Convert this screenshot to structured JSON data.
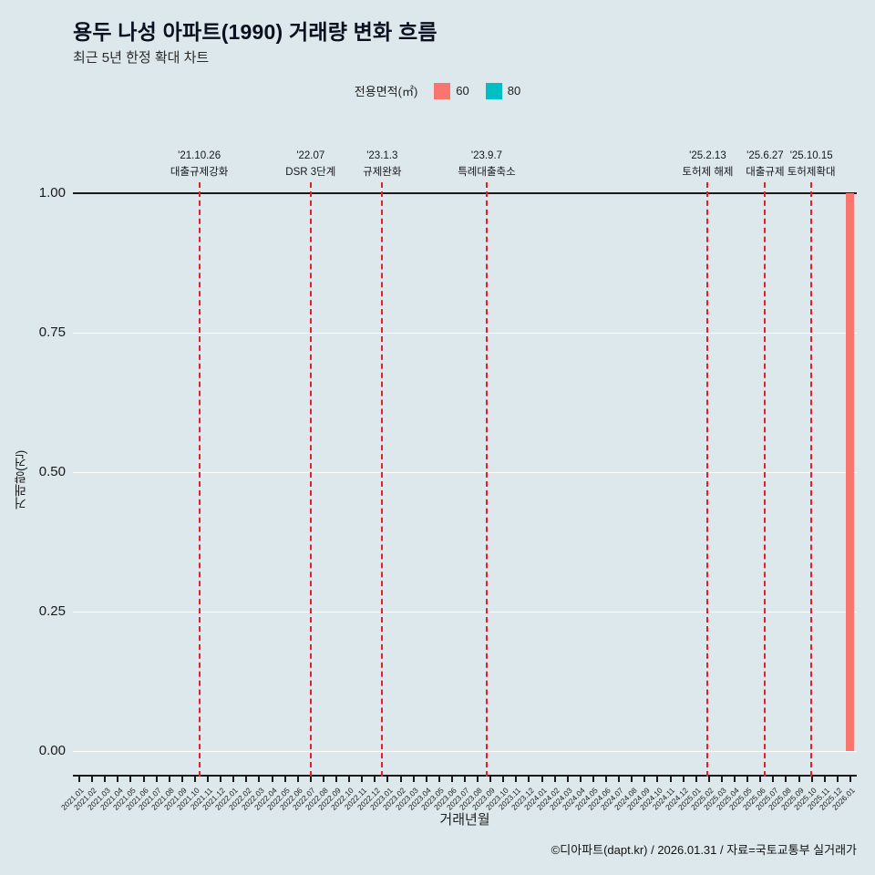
{
  "page": {
    "footer": "©디아파트(dapt.kr) / 2026.01.31 / 자료=국토교통부 실거래가",
    "background": "#dce8eb"
  },
  "chart_data": {
    "type": "bar",
    "title": "용두 나성 아파트(1990) 거래량 변화 흐름",
    "subtitle": "최근 5년 한정 확대 차트",
    "xlabel": "거래년월",
    "ylabel": "거래량(건)",
    "ylim": [
      0,
      1
    ],
    "yticks": [
      0,
      0.25,
      0.5,
      0.75,
      1.0
    ],
    "ytick_labels": [
      "0.00",
      "0.25",
      "0.50",
      "0.75",
      "1.00"
    ],
    "grid": "on",
    "legend": {
      "title": "전용면적(㎡)",
      "position": "top",
      "items": [
        {
          "label": "60",
          "color": "#F8766D"
        },
        {
          "label": "80",
          "color": "#00BFC4"
        }
      ]
    },
    "categories": [
      "2021.01",
      "2021.02",
      "2021.03",
      "2021.04",
      "2021.05",
      "2021.06",
      "2021.07",
      "2021.08",
      "2021.09",
      "2021.10",
      "2021.11",
      "2021.12",
      "2022.01",
      "2022.02",
      "2022.03",
      "2022.04",
      "2022.05",
      "2022.06",
      "2022.07",
      "2022.08",
      "2022.09",
      "2022.10",
      "2022.11",
      "2022.12",
      "2023.01",
      "2023.02",
      "2023.03",
      "2023.04",
      "2023.05",
      "2023.06",
      "2023.07",
      "2023.08",
      "2023.09",
      "2023.10",
      "2023.11",
      "2023.12",
      "2024.01",
      "2024.02",
      "2024.03",
      "2024.04",
      "2024.05",
      "2024.06",
      "2024.07",
      "2024.08",
      "2024.09",
      "2024.10",
      "2024.11",
      "2024.12",
      "2025.01",
      "2025.02",
      "2025.03",
      "2025.04",
      "2025.05",
      "2025.06",
      "2025.07",
      "2025.08",
      "2025.09",
      "2025.10",
      "2025.11",
      "2025.12",
      "2026.01"
    ],
    "series": [
      {
        "name": "60",
        "color": "#F8766D",
        "data": {
          "2026.01": 1
        }
      },
      {
        "name": "80",
        "color": "#00BFC4",
        "data": {}
      }
    ],
    "events": [
      {
        "date": "'21.10.26",
        "label": "대출규제강화"
      },
      {
        "date": "'22.07",
        "label": "DSR 3단계"
      },
      {
        "date": "'23.1.3",
        "label": "규제완화"
      },
      {
        "date": "'23.9.7",
        "label": "특례대출축소"
      },
      {
        "date": "'25.2.13",
        "label": "토허제 해제"
      },
      {
        "date": "'25.6.27",
        "label": "대출규제"
      },
      {
        "date": "'25.10.15",
        "label": "토허제확대"
      }
    ],
    "colors": {
      "event_line": "#e3202a",
      "grid": "#ffffff",
      "axis": "#1a1a1a",
      "background": "#dce8eb"
    }
  }
}
